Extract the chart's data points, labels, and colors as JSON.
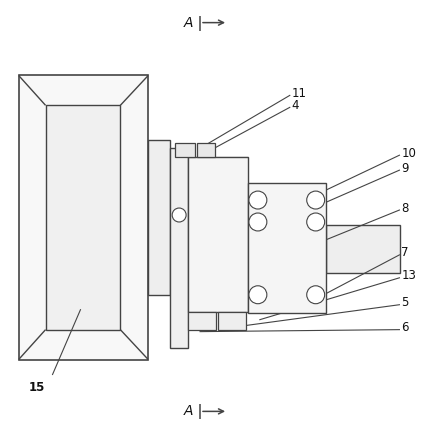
{
  "bg_color": "#ffffff",
  "line_color": "#444444",
  "label_color": "#111111",
  "figsize": [
    4.43,
    4.34
  ],
  "dpi": 100
}
